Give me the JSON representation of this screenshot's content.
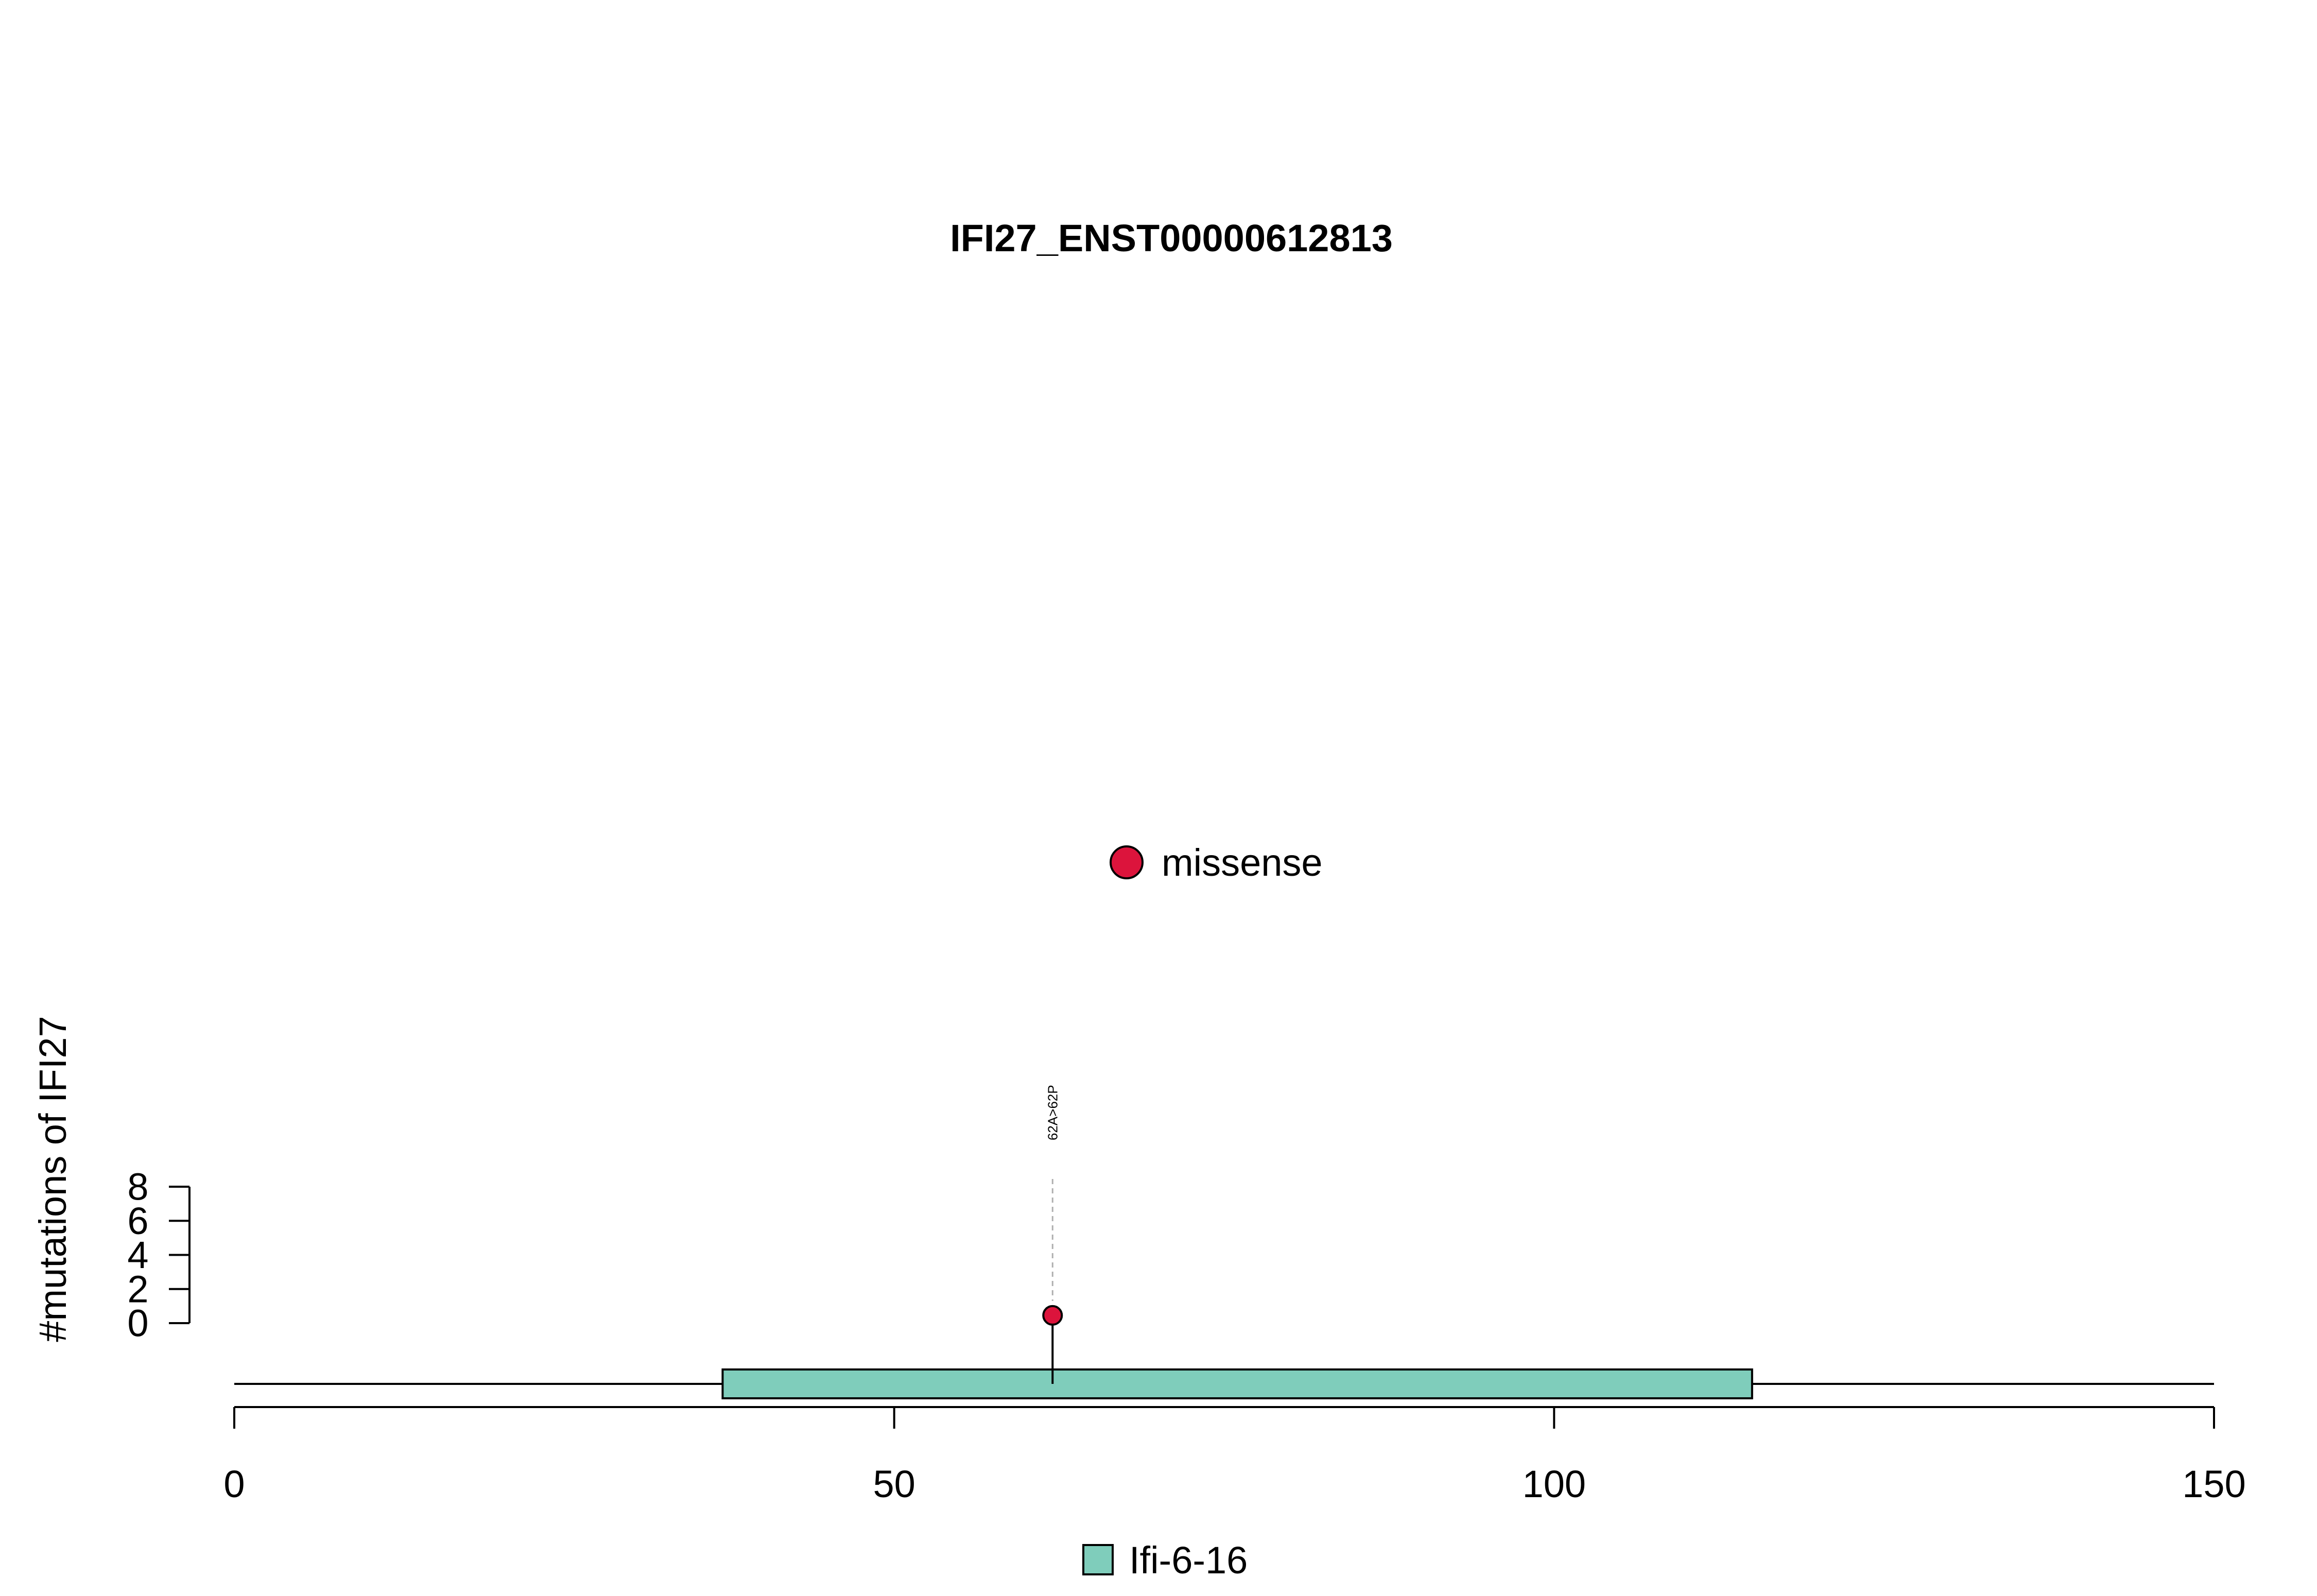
{
  "chart_data": {
    "type": "lollipop",
    "title": "IFI27_ENST00000612813",
    "xlabel": "",
    "ylabel": "#mutations of IFI27",
    "xlim": [
      0,
      150
    ],
    "x_ticks": [
      0,
      50,
      100,
      150
    ],
    "x_tick_labels": [
      "0",
      "50",
      "100",
      "150"
    ],
    "ylim": [
      0,
      8
    ],
    "y_ticks": [
      0,
      2,
      4,
      6,
      8
    ],
    "y_tick_labels": [
      "0",
      "2",
      "4",
      "6",
      "8"
    ],
    "protein_length": 150,
    "domains": [
      {
        "name": "Ifi-6-16",
        "start": 37,
        "end": 115,
        "color": "#7fcdbb"
      }
    ],
    "mutations": [
      {
        "position": 62,
        "count": 1,
        "type": "missense",
        "label": "62A>62P"
      }
    ],
    "mutation_types": [
      {
        "name": "missense",
        "color": "#dc143c"
      }
    ],
    "legend_position": "top-center"
  }
}
